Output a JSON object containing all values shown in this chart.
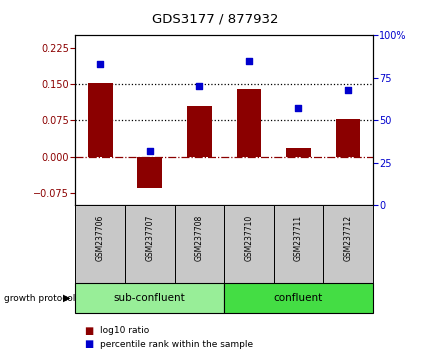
{
  "title": "GDS3177 / 877932",
  "samples": [
    "GSM237706",
    "GSM237707",
    "GSM237708",
    "GSM237710",
    "GSM237711",
    "GSM237712"
  ],
  "log10_ratio": [
    0.152,
    -0.065,
    0.105,
    0.14,
    0.018,
    0.078
  ],
  "percentile_rank": [
    83,
    32,
    70,
    85,
    57,
    68
  ],
  "ylim_left": [
    -0.1,
    0.25
  ],
  "ylim_right": [
    0,
    100
  ],
  "yticks_left": [
    -0.075,
    0,
    0.075,
    0.15,
    0.225
  ],
  "yticks_right": [
    0,
    25,
    50,
    75,
    100
  ],
  "hlines": [
    0.075,
    0.15
  ],
  "zero_line": 0,
  "bar_color": "#8B0000",
  "dot_color": "#0000CD",
  "group1_label": "sub-confluent",
  "group2_label": "confluent",
  "group1_indices": [
    0,
    1,
    2
  ],
  "group2_indices": [
    3,
    4,
    5
  ],
  "group_protocol_label": "growth protocol",
  "legend_bar_label": "log10 ratio",
  "legend_dot_label": "percentile rank within the sample",
  "bar_width": 0.5,
  "background_color": "#ffffff",
  "plot_bg_color": "#ffffff",
  "label_area_color": "#c8c8c8",
  "group1_color": "#98EE98",
  "group2_color": "#44DD44",
  "xlim": [
    -0.5,
    5.5
  ]
}
